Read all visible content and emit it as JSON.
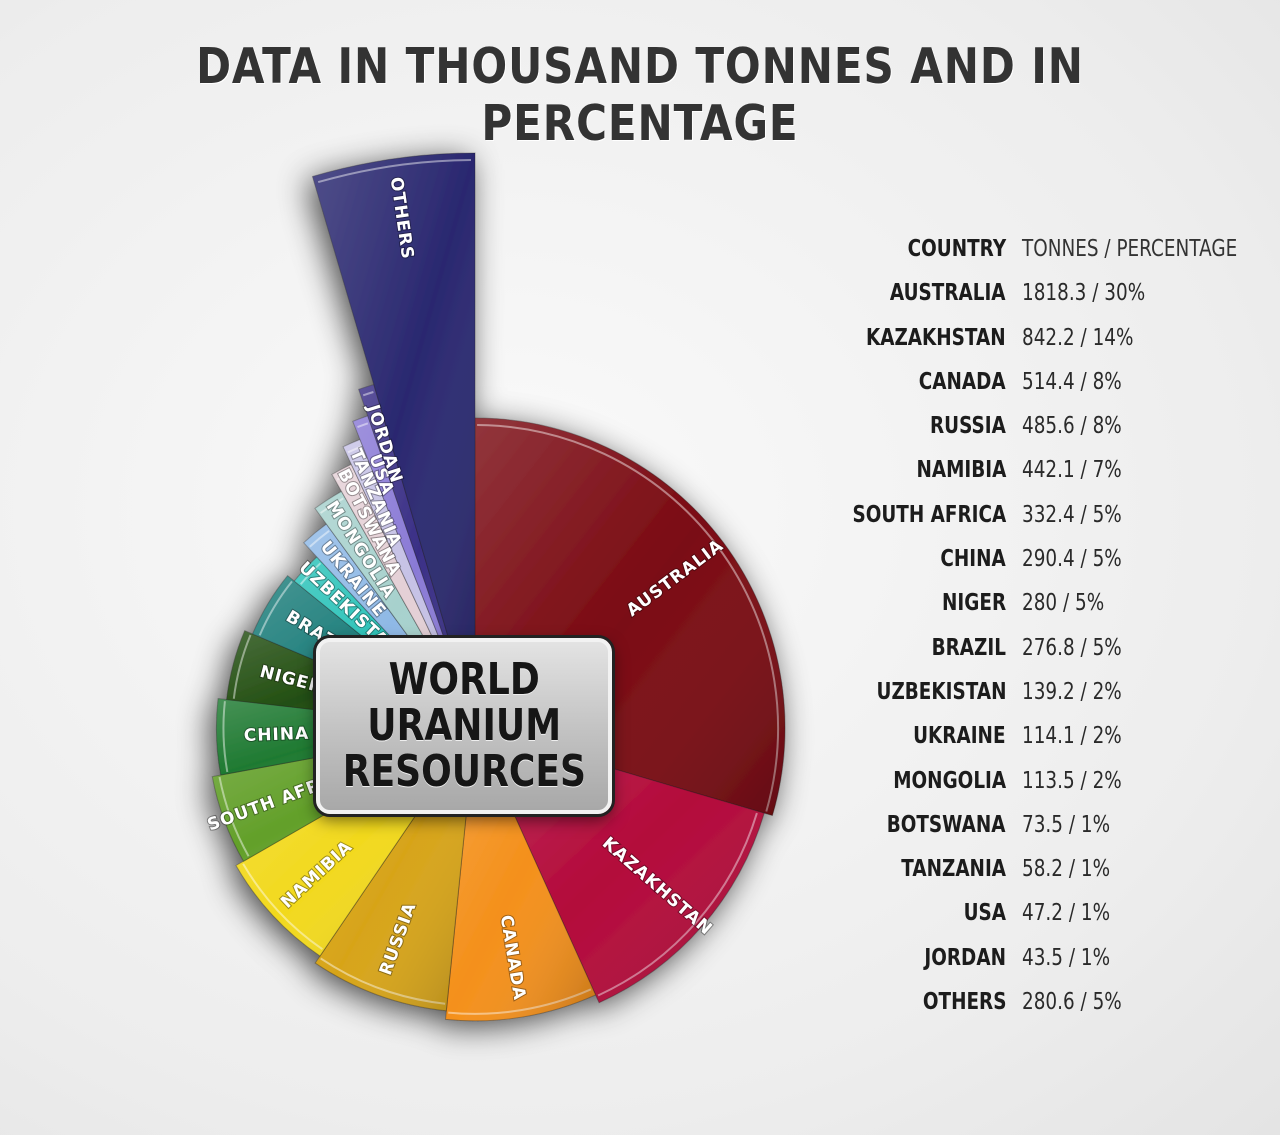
{
  "title": "DATA IN THOUSAND TONNES AND IN PERCENTAGE",
  "center_label": [
    "WORLD",
    "URANIUM",
    "RESOURCES"
  ],
  "legend": {
    "header_country": "COUNTRY",
    "header_value": "TONNES / PERCENTAGE",
    "rows": [
      {
        "country": "AUSTRALIA",
        "value": "1818.3 / 30%"
      },
      {
        "country": "KAZAKHSTAN",
        "value": "842.2 / 14%"
      },
      {
        "country": "CANADA",
        "value": "514.4 / 8%"
      },
      {
        "country": "RUSSIA",
        "value": "485.6 / 8%"
      },
      {
        "country": "NAMIBIA",
        "value": "442.1 / 7%"
      },
      {
        "country": "SOUTH AFRICA",
        "value": "332.4 / 5%"
      },
      {
        "country": "CHINA",
        "value": "290.4 / 5%"
      },
      {
        "country": "NIGER",
        "value": "280 / 5%"
      },
      {
        "country": "BRAZIL",
        "value": "276.8 / 5%"
      },
      {
        "country": "UZBEKISTAN",
        "value": "139.2 / 2%"
      },
      {
        "country": "UKRAINE",
        "value": "114.1 / 2%"
      },
      {
        "country": "MONGOLIA",
        "value": "113.5 / 2%"
      },
      {
        "country": "BOTSWANA",
        "value": "73.5 / 1%"
      },
      {
        "country": "TANZANIA",
        "value": "58.2 / 1%"
      },
      {
        "country": "USA",
        "value": "47.2 / 1%"
      },
      {
        "country": "JORDAN",
        "value": "43.5 / 1%"
      },
      {
        "country": "OTHERS",
        "value": "280.6 / 5%"
      }
    ]
  },
  "chart_data": {
    "type": "pie",
    "title": "DATA IN THOUSAND TONNES AND IN PERCENTAGE",
    "unit": "thousand tonnes",
    "categories": [
      "AUSTRALIA",
      "KAZAKHSTAN",
      "CANADA",
      "RUSSIA",
      "NAMIBIA",
      "SOUTH AFRICA",
      "CHINA",
      "NIGER",
      "BRAZIL",
      "UZBEKISTAN",
      "UKRAINE",
      "MONGOLIA",
      "BOTSWANA",
      "TANZANIA",
      "USA",
      "JORDAN",
      "OTHERS"
    ],
    "values": [
      1818.3,
      842.2,
      514.4,
      485.6,
      442.1,
      332.4,
      290.4,
      280,
      276.8,
      139.2,
      114.1,
      113.5,
      73.5,
      58.2,
      47.2,
      43.5,
      280.6
    ],
    "percentages": [
      30,
      14,
      8,
      8,
      7,
      5,
      5,
      5,
      5,
      2,
      2,
      2,
      1,
      1,
      1,
      1,
      5
    ],
    "colors": [
      "#7a0a12",
      "#b3093a",
      "#f4901b",
      "#d7a419",
      "#f2d91e",
      "#63a02a",
      "#1f7a32",
      "#234f12",
      "#1f7f7c",
      "#2cc3b9",
      "#8fb9e6",
      "#a7d1cd",
      "#e4d0d6",
      "#c6c2e6",
      "#8a7ad6",
      "#3a2f86",
      "#2a2870"
    ],
    "legend_position": "right"
  }
}
